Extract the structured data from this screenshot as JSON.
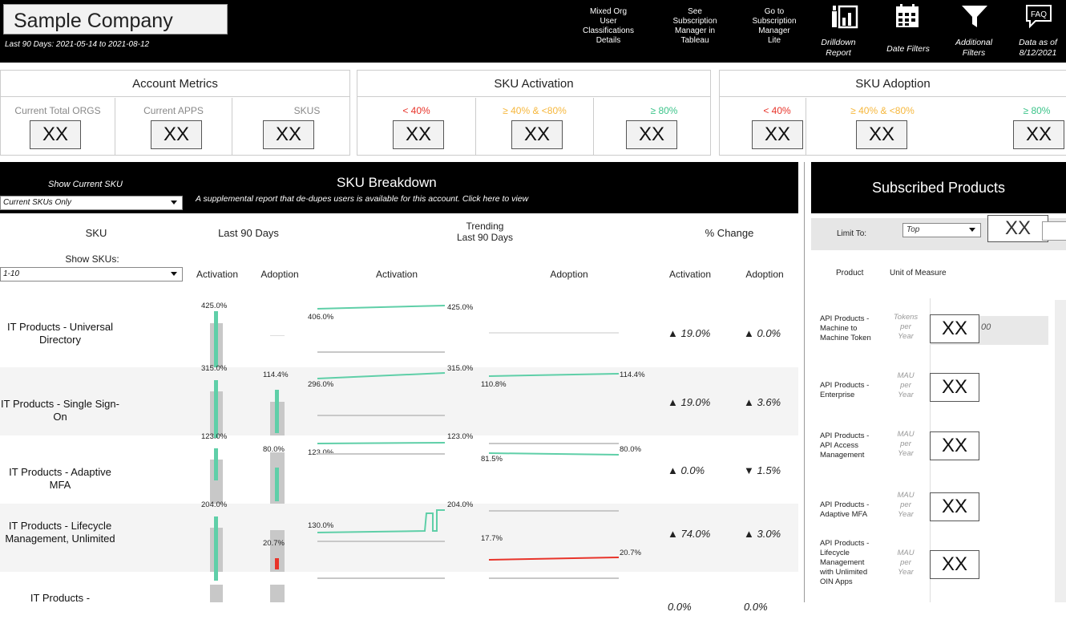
{
  "header": {
    "company": "Sample Company",
    "date_range": "Last 90 Days: 2021-05-14 to 2021-08-12",
    "links": [
      {
        "line1": "Mixed Org",
        "line2": "User",
        "line3": "Classifications",
        "line4": "Details"
      },
      {
        "line1": "See",
        "line2": "Subscription",
        "line3": "Manager in",
        "line4": "Tableau"
      },
      {
        "line1": "Go to",
        "line2": "Subscription",
        "line3": "Manager",
        "line4": "Lite"
      }
    ],
    "icons": [
      {
        "name": "drilldown-icon",
        "line1": "Drilldown",
        "line2": "Report"
      },
      {
        "name": "calendar-icon",
        "line1": "Date Filters",
        "line2": ""
      },
      {
        "name": "filter-icon",
        "line1": "Additional",
        "line2": "Filters"
      },
      {
        "name": "faq-icon",
        "glyph": "FAQ",
        "line1": "Data as of",
        "line2": "8/12/2021"
      }
    ]
  },
  "account_metrics": {
    "title": "Account Metrics",
    "cells": [
      {
        "label": "Current Total ORGS",
        "value": "XX"
      },
      {
        "label": "Current APPS",
        "value": "XX"
      },
      {
        "label": "SKUS",
        "value": "XX"
      }
    ]
  },
  "sku_activation": {
    "title": "SKU Activation",
    "cells": [
      {
        "label": "< 40%",
        "value": "XX",
        "color": "#e8342a"
      },
      {
        "label": "≥ 40% & <80%",
        "value": "XX",
        "color": "#f6b73c"
      },
      {
        "label": "≥ 80%",
        "value": "XX",
        "color": "#3cc48a"
      }
    ]
  },
  "sku_adoption": {
    "title": "SKU Adoption",
    "cells": [
      {
        "label": "< 40%",
        "value": "XX",
        "color": "#e8342a"
      },
      {
        "label": "≥ 40% & <80%",
        "value": "XX",
        "color": "#f6b73c"
      },
      {
        "label": "≥ 80%",
        "value": "XX",
        "color": "#3cc48a"
      }
    ]
  },
  "sku_breakdown": {
    "show_current_label": "Show Current SKU",
    "show_current_value": "Current SKUs Only",
    "title": "SKU Breakdown",
    "subtitle": "A supplemental report that de-dupes users is available for this account. Click here to view",
    "col_sku": "SKU",
    "col_last90": "Last 90 Days",
    "col_trending1": "Trending",
    "col_trending2": "Last 90 Days",
    "col_change": "% Change",
    "show_skus_label": "Show SKUs:",
    "show_skus_value": "1-10",
    "sub_activation": "Activation",
    "sub_adoption": "Adoption",
    "rows": [
      {
        "name": "IT Products - Universal Directory",
        "act": "425.0%",
        "adp": "",
        "act_start": "406.0%",
        "act_end": "425.0%",
        "adp_start": "",
        "adp_end": "",
        "chg_act": "▲ 19.0%",
        "chg_adp": "▲ 0.0%"
      },
      {
        "name": "IT Products - Single Sign-On",
        "act": "315.0%",
        "adp": "114.4%",
        "act_start": "296.0%",
        "act_end": "315.0%",
        "adp_start": "110.8%",
        "adp_end": "114.4%",
        "chg_act": "▲ 19.0%",
        "chg_adp": "▲ 3.6%"
      },
      {
        "name": "IT Products - Adaptive MFA",
        "act": "123.0%",
        "adp": "80.0%",
        "act_start": "123.0%",
        "act_end": "123.0%",
        "adp_start": "81.5%",
        "adp_end": "80.0%",
        "chg_act": "▲ 0.0%",
        "chg_adp": "▼ 1.5%"
      },
      {
        "name": "IT Products - Lifecycle Management, Unlimited",
        "act": "204.0%",
        "adp": "20.7%",
        "act_start": "130.0%",
        "act_end": "204.0%",
        "adp_start": "17.7%",
        "adp_end": "20.7%",
        "chg_act": "▲ 74.0%",
        "chg_adp": "▲ 3.0%"
      },
      {
        "name": "IT Products -",
        "act": "",
        "adp": "",
        "act_start": "",
        "act_end": "",
        "adp_start": "",
        "adp_end": "",
        "chg_act": "0.0%",
        "chg_adp": "0.0%"
      }
    ]
  },
  "subscribed": {
    "title": "Subscribed Products",
    "limit_label": "Limit To:",
    "limit_value": "Top",
    "limit_count": "XX",
    "col_product": "Product",
    "col_unit": "Unit of Measure",
    "products": [
      {
        "name1": "API Products -",
        "name2": "Machine to",
        "name3": "Machine Token",
        "name4": "",
        "unit1": "Tokens",
        "unit2": "per",
        "unit3": "Year",
        "value": "XX",
        "extra": "00"
      },
      {
        "name1": "API Products -",
        "name2": "Enterprise",
        "name3": "",
        "name4": "",
        "unit1": "MAU",
        "unit2": "per",
        "unit3": "Year",
        "value": "XX",
        "extra": ""
      },
      {
        "name1": "API Products -",
        "name2": "API Access",
        "name3": "Management",
        "name4": "",
        "unit1": "MAU",
        "unit2": "per",
        "unit3": "Year",
        "value": "XX",
        "extra": ""
      },
      {
        "name1": "API Products -",
        "name2": "Adaptive MFA",
        "name3": "",
        "name4": "",
        "unit1": "MAU",
        "unit2": "per",
        "unit3": "Year",
        "value": "XX",
        "extra": ""
      },
      {
        "name1": "API Products -",
        "name2": "Lifecycle",
        "name3": "Management",
        "name4": "with Unlimited",
        "name5": "OIN Apps",
        "unit1": "MAU",
        "unit2": "per",
        "unit3": "Year",
        "value": "XX",
        "extra": ""
      }
    ]
  },
  "colors": {
    "green": "#5fcfa8",
    "red": "#e8342a",
    "grey": "#c8c8c8"
  }
}
